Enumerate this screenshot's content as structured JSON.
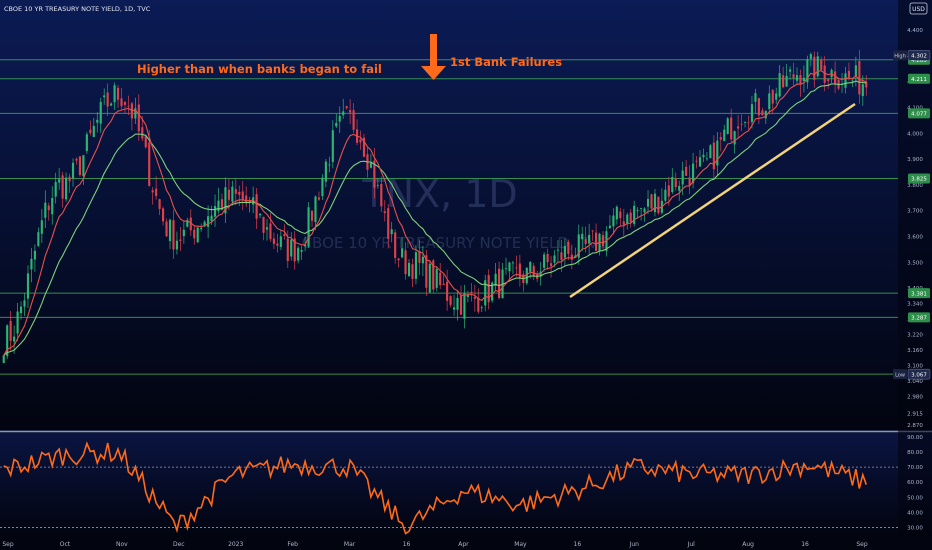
{
  "header": {
    "symbol_title": "CBOE 10 YR TREASURY NOTE YIELD, 1D, TVC",
    "currency": "USD"
  },
  "watermark": {
    "ticker": "TNX, 1D",
    "name": "CBOE 10 YR TREASURY NOTE YIELD, TVC"
  },
  "annotations": {
    "left_text": "Higher than when banks began to fail",
    "right_text": "1st Bank Failures"
  },
  "colors": {
    "bg_top": "#0b1b55",
    "bg_bottom": "#02040f",
    "up_candle": "#2bb673",
    "down_candle": "#e0404a",
    "ema_fast": "#e8504a",
    "ema_slow": "#7fd07a",
    "hline": "#3ea35a",
    "trendline": "#f2d27a",
    "annotation": "#ff6a1a",
    "rsi_line": "#ff6a1a"
  },
  "chart_data": [
    {
      "type": "candlestick",
      "title": "CBOE 10 YR TREASURY NOTE YIELD, 1D, TVC",
      "ylim": [
        2.85,
        4.4
      ],
      "y_scale_labels": [
        "4.400",
        "4.300",
        "4.200",
        "4.100",
        "4.000",
        "3.900",
        "3.800",
        "3.700",
        "3.600",
        "3.500",
        "3.400",
        "3.340",
        "3.280",
        "3.220",
        "3.160",
        "3.100",
        "3.040",
        "2.980",
        "2.915",
        "2.870"
      ],
      "x_tick_labels": [
        "Sep",
        "Oct",
        "Nov",
        "Dec",
        "2023",
        "Feb",
        "Mar",
        "16",
        "Apr",
        "May",
        "16",
        "Jun",
        "Jul",
        "Aug",
        "16",
        "Sep"
      ],
      "horizontal_levels": [
        {
          "label": "4.285",
          "value": 4.285
        },
        {
          "label": "4.211",
          "value": 4.211
        },
        {
          "label": "4.077",
          "value": 4.077
        },
        {
          "label": "3.825",
          "value": 3.825
        },
        {
          "label": "3.381",
          "value": 3.381
        },
        {
          "label": "3.287",
          "value": 3.287
        },
        {
          "label": "3.067",
          "value": 3.067
        }
      ],
      "price_tags": [
        {
          "name": "High",
          "value": "4.302"
        },
        {
          "name": "Low",
          "value": "3.067"
        }
      ],
      "series": [
        {
          "name": "TNX daily close (approx.)",
          "x": [
            "Sep",
            "Oct",
            "Nov",
            "Dec",
            "Jan",
            "Feb",
            "Mar",
            "Mar16",
            "Apr",
            "May",
            "May16",
            "Jun",
            "Jul",
            "Aug",
            "Aug16",
            "Sep"
          ],
          "values": [
            3.2,
            3.8,
            4.15,
            3.6,
            3.75,
            3.55,
            4.05,
            3.5,
            3.35,
            3.45,
            3.55,
            3.7,
            3.85,
            4.1,
            4.25,
            4.2
          ]
        }
      ]
    },
    {
      "type": "line",
      "title": "",
      "ylim": [
        25,
        90
      ],
      "y_tick_labels": [
        "90.00",
        "80.00",
        "70.00",
        "60.00",
        "50.00",
        "40.00",
        "30.00"
      ],
      "reference_lines": [
        70,
        30
      ],
      "series": [
        {
          "name": "",
          "x": [
            "Sep",
            "Oct",
            "Nov",
            "Dec",
            "Jan",
            "Feb",
            "Mar",
            "Mar16",
            "Apr",
            "May",
            "May16",
            "Jun",
            "Jul",
            "Aug",
            "Aug16",
            "Sep"
          ],
          "values": [
            68,
            78,
            80,
            30,
            65,
            72,
            70,
            30,
            55,
            45,
            55,
            70,
            65,
            65,
            72,
            60
          ]
        }
      ]
    }
  ]
}
